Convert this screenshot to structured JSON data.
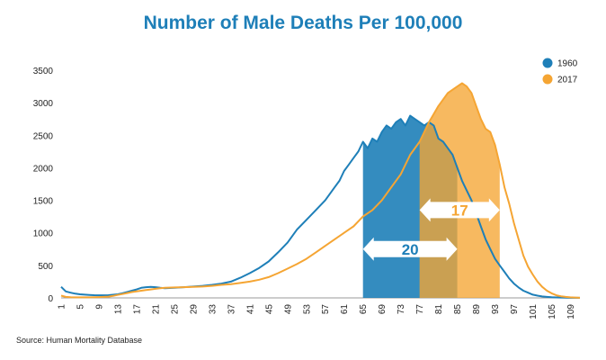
{
  "chart_data": {
    "type": "area",
    "title": "Number of Male Deaths Per 100,000",
    "source": "Source: Human Mortality Database",
    "xlabel": "",
    "ylabel": "",
    "ylim": [
      0,
      3500
    ],
    "xlim": [
      1,
      111
    ],
    "yticks": [
      0,
      500,
      1000,
      1500,
      2000,
      2500,
      3000,
      3500
    ],
    "xticks": [
      1,
      5,
      9,
      13,
      17,
      21,
      25,
      29,
      33,
      37,
      41,
      45,
      49,
      53,
      57,
      61,
      65,
      69,
      73,
      77,
      81,
      85,
      89,
      93,
      97,
      101,
      105,
      109
    ],
    "legend": {
      "placement": "top-right"
    },
    "series": [
      {
        "name": "1960",
        "color": "#1e7fb8",
        "x": [
          1,
          2,
          3,
          4,
          5,
          6,
          7,
          8,
          9,
          10,
          11,
          12,
          13,
          14,
          15,
          16,
          17,
          18,
          19,
          20,
          21,
          22,
          23,
          24,
          25,
          27,
          29,
          31,
          33,
          35,
          37,
          39,
          41,
          43,
          45,
          47,
          49,
          51,
          53,
          55,
          57,
          59,
          60,
          61,
          62,
          63,
          64,
          65,
          66,
          67,
          68,
          69,
          70,
          71,
          72,
          73,
          74,
          75,
          76,
          77,
          78,
          79,
          80,
          81,
          82,
          83,
          84,
          85,
          86,
          87,
          88,
          89,
          90,
          91,
          92,
          93,
          94,
          95,
          96,
          97,
          98,
          99,
          100,
          101,
          102,
          103,
          104,
          105,
          106,
          107,
          108,
          109,
          110,
          111
        ],
        "values": [
          170,
          100,
          80,
          65,
          55,
          50,
          45,
          42,
          40,
          40,
          42,
          48,
          55,
          70,
          90,
          110,
          130,
          155,
          165,
          170,
          165,
          155,
          150,
          152,
          155,
          165,
          175,
          185,
          200,
          220,
          250,
          310,
          380,
          460,
          560,
          700,
          850,
          1050,
          1200,
          1350,
          1500,
          1700,
          1800,
          1950,
          2050,
          2150,
          2250,
          2400,
          2300,
          2450,
          2400,
          2550,
          2650,
          2600,
          2700,
          2750,
          2650,
          2800,
          2750,
          2700,
          2650,
          2700,
          2650,
          2450,
          2400,
          2300,
          2200,
          2000,
          1800,
          1650,
          1500,
          1300,
          1100,
          900,
          750,
          600,
          500,
          400,
          300,
          220,
          160,
          110,
          80,
          50,
          35,
          22,
          15,
          10,
          7,
          5,
          3,
          2,
          1,
          1
        ],
        "highlight": {
          "start": 65,
          "end": 85
        }
      },
      {
        "name": "2017",
        "color": "#f5a533",
        "x": [
          1,
          2,
          3,
          4,
          5,
          6,
          7,
          8,
          9,
          10,
          11,
          12,
          13,
          14,
          15,
          16,
          17,
          18,
          19,
          20,
          21,
          22,
          23,
          25,
          27,
          29,
          31,
          33,
          35,
          37,
          39,
          41,
          43,
          45,
          47,
          49,
          51,
          53,
          55,
          57,
          59,
          61,
          63,
          65,
          67,
          69,
          71,
          73,
          75,
          77,
          79,
          81,
          83,
          85,
          86,
          87,
          88,
          89,
          90,
          91,
          92,
          93,
          94,
          95,
          96,
          97,
          98,
          99,
          100,
          101,
          102,
          103,
          104,
          105,
          106,
          107,
          108,
          109,
          110,
          111
        ],
        "values": [
          35,
          15,
          10,
          8,
          8,
          8,
          8,
          10,
          12,
          15,
          20,
          30,
          45,
          60,
          75,
          90,
          100,
          110,
          120,
          130,
          140,
          150,
          155,
          160,
          165,
          170,
          175,
          185,
          200,
          210,
          230,
          250,
          280,
          320,
          380,
          450,
          520,
          600,
          700,
          800,
          900,
          1000,
          1100,
          1250,
          1350,
          1500,
          1700,
          1900,
          2200,
          2400,
          2700,
          2950,
          3150,
          3250,
          3300,
          3250,
          3150,
          2950,
          2750,
          2600,
          2550,
          2350,
          2050,
          1700,
          1450,
          1150,
          900,
          650,
          480,
          360,
          250,
          170,
          110,
          70,
          40,
          25,
          15,
          8,
          5,
          2
        ],
        "highlight": {
          "start": 77,
          "end": 94
        }
      }
    ],
    "annotations": [
      {
        "text": "20",
        "color": "#1e7fb8",
        "range": [
          65,
          85
        ],
        "y": 750
      },
      {
        "text": "17",
        "color": "#f5a533",
        "range": [
          77,
          94
        ],
        "y": 1350
      }
    ]
  }
}
